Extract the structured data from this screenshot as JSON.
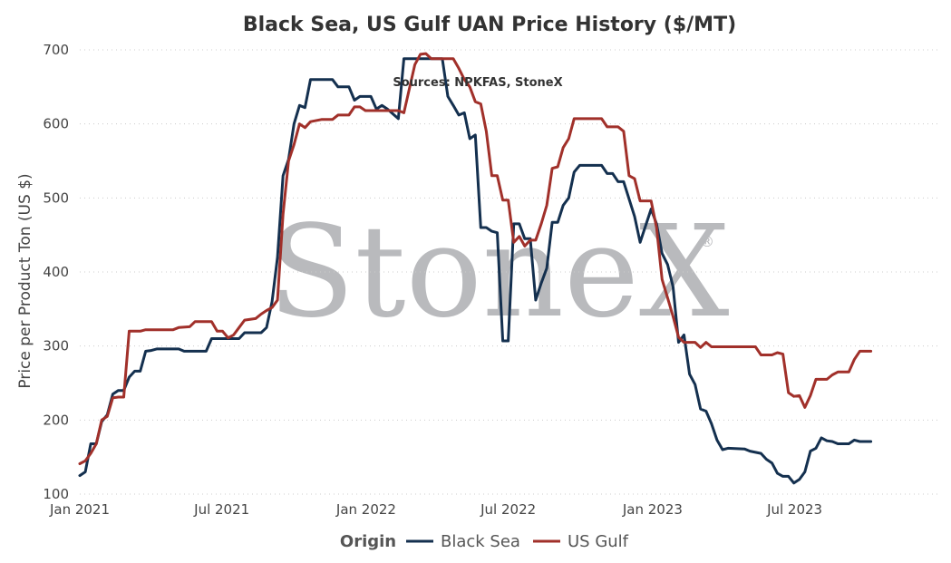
{
  "chart_data": {
    "type": "line",
    "title": "Black Sea, US Gulf UAN Price History ($/MT)",
    "annotation": "Sources: NPKFAS, StoneX",
    "watermark": "StoneX",
    "watermark_mark": "®",
    "ylabel": "Price per Product Ton (US $)",
    "xlabel": "",
    "ylim": [
      100,
      700
    ],
    "yticks": [
      100,
      200,
      300,
      400,
      500,
      600,
      700
    ],
    "xlim": [
      "2021-01-01",
      "2023-12-31"
    ],
    "xticks": [
      {
        "date": "2021-01-01",
        "label": "Jan 2021"
      },
      {
        "date": "2021-07-01",
        "label": "Jul 2021"
      },
      {
        "date": "2022-01-01",
        "label": "Jan 2022"
      },
      {
        "date": "2022-07-01",
        "label": "Jul 2022"
      },
      {
        "date": "2023-01-01",
        "label": "Jan 2023"
      },
      {
        "date": "2023-07-01",
        "label": "Jul 2023"
      }
    ],
    "grid": "horizontal dotted",
    "legend": {
      "title": "Origin",
      "position": "bottom"
    },
    "series": [
      {
        "name": "Black Sea",
        "color": "#14304f",
        "points": [
          [
            "2021-01-01",
            125
          ],
          [
            "2021-01-08",
            130
          ],
          [
            "2021-01-15",
            168
          ],
          [
            "2021-01-22",
            168
          ],
          [
            "2021-01-29",
            198
          ],
          [
            "2021-02-05",
            207
          ],
          [
            "2021-02-12",
            235
          ],
          [
            "2021-02-19",
            240
          ],
          [
            "2021-02-26",
            240
          ],
          [
            "2021-03-05",
            258
          ],
          [
            "2021-03-12",
            266
          ],
          [
            "2021-03-19",
            266
          ],
          [
            "2021-03-26",
            293
          ],
          [
            "2021-04-02",
            294
          ],
          [
            "2021-04-09",
            296
          ],
          [
            "2021-04-23",
            296
          ],
          [
            "2021-05-07",
            296
          ],
          [
            "2021-05-14",
            293
          ],
          [
            "2021-06-11",
            293
          ],
          [
            "2021-06-18",
            310
          ],
          [
            "2021-07-23",
            310
          ],
          [
            "2021-07-30",
            318
          ],
          [
            "2021-08-20",
            318
          ],
          [
            "2021-08-27",
            325
          ],
          [
            "2021-09-03",
            360
          ],
          [
            "2021-09-10",
            420
          ],
          [
            "2021-09-17",
            530
          ],
          [
            "2021-09-24",
            552
          ],
          [
            "2021-10-01",
            600
          ],
          [
            "2021-10-08",
            625
          ],
          [
            "2021-10-15",
            622
          ],
          [
            "2021-10-22",
            660
          ],
          [
            "2021-11-19",
            660
          ],
          [
            "2021-11-26",
            650
          ],
          [
            "2021-12-10",
            650
          ],
          [
            "2021-12-17",
            632
          ],
          [
            "2021-12-24",
            637
          ],
          [
            "2022-01-07",
            637
          ],
          [
            "2022-01-14",
            620
          ],
          [
            "2022-01-21",
            625
          ],
          [
            "2022-01-28",
            620
          ],
          [
            "2022-02-11",
            607
          ],
          [
            "2022-02-18",
            688
          ],
          [
            "2022-03-04",
            688
          ],
          [
            "2022-03-18",
            688
          ],
          [
            "2022-03-25",
            688
          ],
          [
            "2022-04-08",
            688
          ],
          [
            "2022-04-15",
            637
          ],
          [
            "2022-04-22",
            625
          ],
          [
            "2022-04-29",
            612
          ],
          [
            "2022-05-06",
            615
          ],
          [
            "2022-05-13",
            580
          ],
          [
            "2022-05-20",
            585
          ],
          [
            "2022-05-27",
            460
          ],
          [
            "2022-06-03",
            460
          ],
          [
            "2022-06-10",
            455
          ],
          [
            "2022-06-17",
            453
          ],
          [
            "2022-06-24",
            307
          ],
          [
            "2022-07-01",
            307
          ],
          [
            "2022-07-08",
            465
          ],
          [
            "2022-07-15",
            465
          ],
          [
            "2022-07-22",
            445
          ],
          [
            "2022-07-29",
            445
          ],
          [
            "2022-08-05",
            362
          ],
          [
            "2022-08-12",
            385
          ],
          [
            "2022-08-19",
            405
          ],
          [
            "2022-08-26",
            467
          ],
          [
            "2022-09-02",
            467
          ],
          [
            "2022-09-09",
            490
          ],
          [
            "2022-09-16",
            500
          ],
          [
            "2022-09-23",
            535
          ],
          [
            "2022-09-30",
            544
          ],
          [
            "2022-10-28",
            544
          ],
          [
            "2022-11-04",
            533
          ],
          [
            "2022-11-11",
            533
          ],
          [
            "2022-11-18",
            522
          ],
          [
            "2022-11-25",
            522
          ],
          [
            "2022-12-09",
            475
          ],
          [
            "2022-12-16",
            440
          ],
          [
            "2022-12-30",
            485
          ],
          [
            "2023-01-06",
            465
          ],
          [
            "2023-01-13",
            425
          ],
          [
            "2023-01-20",
            410
          ],
          [
            "2023-01-27",
            380
          ],
          [
            "2023-02-03",
            305
          ],
          [
            "2023-02-10",
            315
          ],
          [
            "2023-02-17",
            262
          ],
          [
            "2023-02-24",
            248
          ],
          [
            "2023-03-03",
            215
          ],
          [
            "2023-03-10",
            212
          ],
          [
            "2023-03-17",
            195
          ],
          [
            "2023-03-24",
            173
          ],
          [
            "2023-03-31",
            160
          ],
          [
            "2023-04-07",
            162
          ],
          [
            "2023-04-28",
            161
          ],
          [
            "2023-05-05",
            158
          ],
          [
            "2023-05-19",
            155
          ],
          [
            "2023-05-26",
            147
          ],
          [
            "2023-06-02",
            142
          ],
          [
            "2023-06-09",
            128
          ],
          [
            "2023-06-16",
            124
          ],
          [
            "2023-06-23",
            124
          ],
          [
            "2023-06-30",
            115
          ],
          [
            "2023-07-07",
            120
          ],
          [
            "2023-07-14",
            130
          ],
          [
            "2023-07-21",
            158
          ],
          [
            "2023-07-28",
            162
          ],
          [
            "2023-08-04",
            176
          ],
          [
            "2023-08-11",
            172
          ],
          [
            "2023-08-18",
            171
          ],
          [
            "2023-08-25",
            168
          ],
          [
            "2023-09-08",
            168
          ],
          [
            "2023-09-15",
            173
          ],
          [
            "2023-09-22",
            171
          ],
          [
            "2023-10-06",
            171
          ]
        ]
      },
      {
        "name": "US Gulf",
        "color": "#a1302a",
        "points": [
          [
            "2021-01-01",
            141
          ],
          [
            "2021-01-08",
            145
          ],
          [
            "2021-01-15",
            155
          ],
          [
            "2021-01-22",
            168
          ],
          [
            "2021-01-29",
            200
          ],
          [
            "2021-02-05",
            205
          ],
          [
            "2021-02-12",
            230
          ],
          [
            "2021-02-19",
            231
          ],
          [
            "2021-02-26",
            231
          ],
          [
            "2021-03-05",
            320
          ],
          [
            "2021-03-12",
            320
          ],
          [
            "2021-03-19",
            320
          ],
          [
            "2021-03-26",
            322
          ],
          [
            "2021-04-23",
            322
          ],
          [
            "2021-04-30",
            322
          ],
          [
            "2021-05-07",
            325
          ],
          [
            "2021-05-21",
            326
          ],
          [
            "2021-05-28",
            333
          ],
          [
            "2021-06-18",
            333
          ],
          [
            "2021-06-25",
            320
          ],
          [
            "2021-07-02",
            320
          ],
          [
            "2021-07-09",
            311
          ],
          [
            "2021-07-16",
            315
          ],
          [
            "2021-07-23",
            325
          ],
          [
            "2021-07-30",
            335
          ],
          [
            "2021-08-13",
            337
          ],
          [
            "2021-08-20",
            343
          ],
          [
            "2021-08-27",
            348
          ],
          [
            "2021-09-03",
            352
          ],
          [
            "2021-09-10",
            362
          ],
          [
            "2021-09-17",
            478
          ],
          [
            "2021-09-24",
            550
          ],
          [
            "2021-10-01",
            572
          ],
          [
            "2021-10-08",
            600
          ],
          [
            "2021-10-15",
            595
          ],
          [
            "2021-10-22",
            603
          ],
          [
            "2021-11-05",
            606
          ],
          [
            "2021-11-19",
            606
          ],
          [
            "2021-11-26",
            612
          ],
          [
            "2021-12-10",
            612
          ],
          [
            "2021-12-17",
            623
          ],
          [
            "2021-12-24",
            623
          ],
          [
            "2021-12-31",
            618
          ],
          [
            "2022-02-11",
            618
          ],
          [
            "2022-02-18",
            615
          ],
          [
            "2022-03-04",
            680
          ],
          [
            "2022-03-11",
            694
          ],
          [
            "2022-03-18",
            695
          ],
          [
            "2022-03-25",
            688
          ],
          [
            "2022-04-22",
            688
          ],
          [
            "2022-04-29",
            675
          ],
          [
            "2022-05-06",
            660
          ],
          [
            "2022-05-13",
            650
          ],
          [
            "2022-05-20",
            630
          ],
          [
            "2022-05-27",
            627
          ],
          [
            "2022-06-03",
            590
          ],
          [
            "2022-06-10",
            530
          ],
          [
            "2022-06-17",
            530
          ],
          [
            "2022-06-24",
            497
          ],
          [
            "2022-07-01",
            497
          ],
          [
            "2022-07-08",
            440
          ],
          [
            "2022-07-15",
            448
          ],
          [
            "2022-07-22",
            435
          ],
          [
            "2022-07-29",
            443
          ],
          [
            "2022-08-05",
            443
          ],
          [
            "2022-08-12",
            465
          ],
          [
            "2022-08-19",
            490
          ],
          [
            "2022-08-26",
            540
          ],
          [
            "2022-09-02",
            542
          ],
          [
            "2022-09-09",
            568
          ],
          [
            "2022-09-16",
            580
          ],
          [
            "2022-09-23",
            607
          ],
          [
            "2022-10-28",
            607
          ],
          [
            "2022-11-04",
            596
          ],
          [
            "2022-11-18",
            596
          ],
          [
            "2022-11-25",
            590
          ],
          [
            "2022-12-02",
            530
          ],
          [
            "2022-12-09",
            526
          ],
          [
            "2022-12-16",
            496
          ],
          [
            "2022-12-30",
            496
          ],
          [
            "2023-01-06",
            460
          ],
          [
            "2023-01-13",
            390
          ],
          [
            "2023-01-20",
            365
          ],
          [
            "2023-01-27",
            340
          ],
          [
            "2023-02-03",
            312
          ],
          [
            "2023-02-10",
            305
          ],
          [
            "2023-02-24",
            305
          ],
          [
            "2023-03-03",
            298
          ],
          [
            "2023-03-10",
            305
          ],
          [
            "2023-03-17",
            299
          ],
          [
            "2023-05-12",
            299
          ],
          [
            "2023-05-19",
            288
          ],
          [
            "2023-06-02",
            288
          ],
          [
            "2023-06-09",
            291
          ],
          [
            "2023-06-16",
            289
          ],
          [
            "2023-06-23",
            237
          ],
          [
            "2023-06-30",
            232
          ],
          [
            "2023-07-07",
            233
          ],
          [
            "2023-07-14",
            217
          ],
          [
            "2023-07-21",
            233
          ],
          [
            "2023-07-28",
            255
          ],
          [
            "2023-08-11",
            255
          ],
          [
            "2023-08-18",
            261
          ],
          [
            "2023-08-25",
            265
          ],
          [
            "2023-09-08",
            265
          ],
          [
            "2023-09-15",
            282
          ],
          [
            "2023-09-22",
            293
          ],
          [
            "2023-10-06",
            293
          ]
        ]
      }
    ]
  }
}
